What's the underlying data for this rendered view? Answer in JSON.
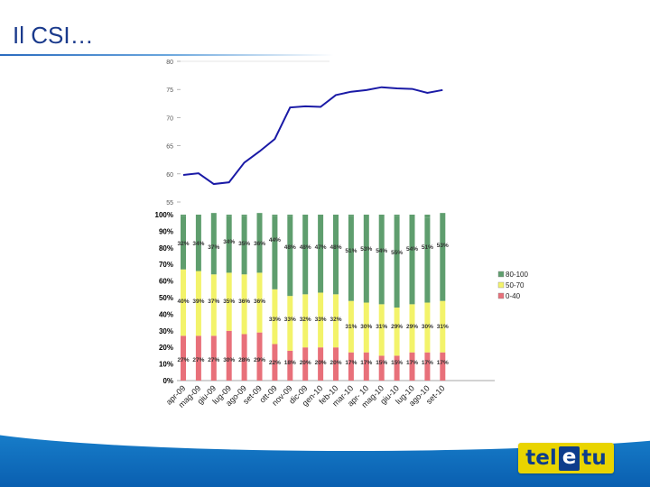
{
  "slide": {
    "title": "Il CSI…"
  },
  "logo": {
    "part1": "tel",
    "part2": "e",
    "part3": "tu"
  },
  "chart_data": [
    {
      "type": "line",
      "title": "",
      "x": [
        "apr-09",
        "mag-09",
        "giu-09",
        "lug-09",
        "ago-09",
        "set-09",
        "ott-09",
        "nov-09",
        "dic-09",
        "gen-10",
        "feb-10",
        "mar-10",
        "apr-10",
        "mag-10",
        "giu-10",
        "lug-10",
        "ago-10",
        "set-10"
      ],
      "values": [
        59.8,
        60.1,
        58.2,
        58.5,
        62.0,
        64.0,
        66.2,
        71.8,
        72.0,
        71.9,
        74.0,
        74.6,
        74.9,
        75.4,
        75.2,
        75.1,
        74.4,
        74.9
      ],
      "ylim": [
        55,
        80
      ],
      "yticks": [
        "80",
        "75",
        "70",
        "65",
        "60",
        "55"
      ],
      "color": "#1a1aa6"
    },
    {
      "type": "bar",
      "stacked": true,
      "categories": [
        "apr-09",
        "mag-09",
        "giu-09",
        "lug-09",
        "ago-09",
        "set-09",
        "ott-09",
        "nov-09",
        "dic-09",
        "gen-10",
        "feb-10",
        "mar-10",
        "apr-10",
        "mag-10",
        "giu-10",
        "lug-10",
        "ago-10",
        "set-10"
      ],
      "xlabels": [
        "apr-09",
        "mag-09",
        "giu-09",
        "lug-09",
        "ago-09",
        "set-09",
        "ott-09",
        "nov-09",
        "dic-09",
        "gen-10",
        "feb-10",
        "mar-10",
        "apr- 10",
        "mag-10",
        "giu-10",
        "lug-10",
        "ago-10",
        "set-10"
      ],
      "series": [
        {
          "name": "0-40",
          "color": "#e8707a",
          "values": [
            27,
            27,
            27,
            30,
            28,
            29,
            22,
            18,
            20,
            20,
            20,
            17,
            17,
            15,
            15,
            17,
            17,
            17
          ]
        },
        {
          "name": "50-70",
          "color": "#f3f36a",
          "values": [
            40,
            39,
            37,
            35,
            36,
            36,
            33,
            33,
            32,
            33,
            32,
            31,
            30,
            31,
            29,
            29,
            30,
            31
          ]
        },
        {
          "name": "80-100",
          "color": "#5f9e6e",
          "values": [
            32,
            34,
            37,
            34,
            35,
            36,
            44,
            48,
            48,
            47,
            48,
            51,
            53,
            54,
            55,
            54,
            51,
            53
          ]
        }
      ],
      "labels": {
        "0-40": [
          "27%",
          "27%",
          "27%",
          "30%",
          "28%",
          "29%",
          "22%",
          "18%",
          "20%",
          "20%",
          "20%",
          "17%",
          "17%",
          "15%",
          "15%",
          "17%",
          "17%",
          "17%"
        ],
        "50-70": [
          "40%",
          "39%",
          "37%",
          "35%",
          "36%",
          "36%",
          "33%",
          "33%",
          "32%",
          "33%",
          "32%",
          "31%",
          "30%",
          "31%",
          "29%",
          "29%",
          "30%",
          "31%"
        ],
        "80-100": [
          "32%",
          "34%",
          "37%",
          "34%",
          "35%",
          "36%",
          "44%",
          "48%",
          "48%",
          "47%",
          "48%",
          "51%",
          "53%",
          "54%",
          "55%",
          "54%",
          "51%",
          "53%"
        ]
      },
      "yticks": [
        "0%",
        "10%",
        "20%",
        "30%",
        "40%",
        "50%",
        "60%",
        "70%",
        "80%",
        "90%",
        "100%"
      ],
      "ylim": [
        0,
        100
      ],
      "legend_order": [
        "80-100",
        "50-70",
        "0-40"
      ],
      "legend_position": "right"
    }
  ]
}
